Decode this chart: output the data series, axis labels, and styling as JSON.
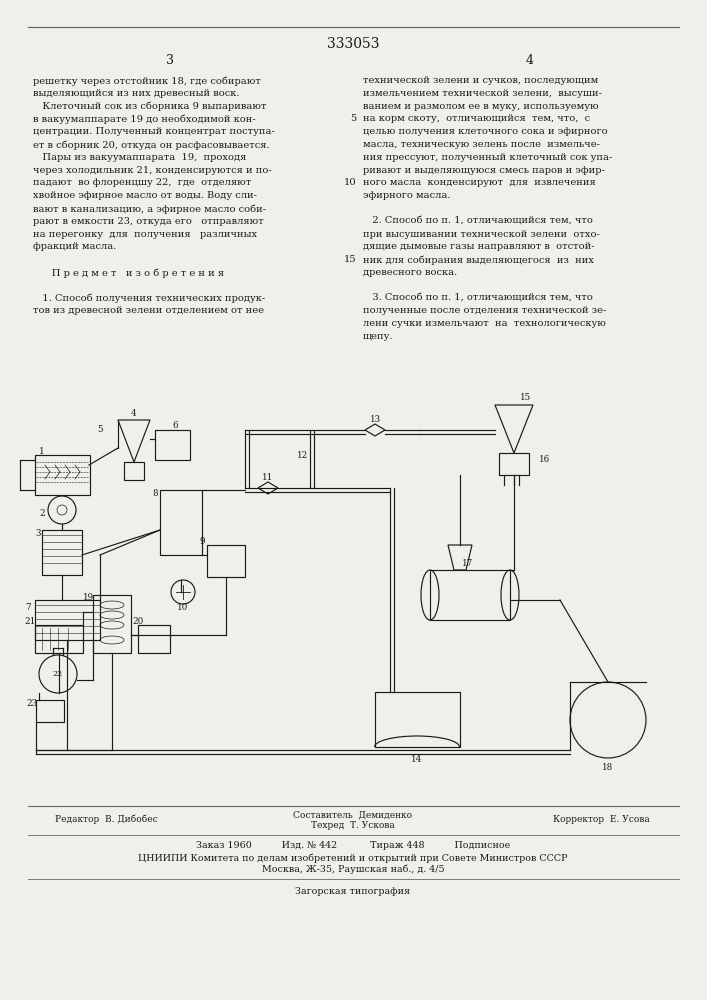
{
  "patent_number": "333053",
  "page_left": "3",
  "page_right": "4",
  "col_left_text": [
    "решетку через отстойник 18, где собирают",
    "выделяющийся из них древесный воск.",
    "   Клеточный сок из сборника 9 выпаривают",
    "в вакуумаппарате 19 до необходимой кон-",
    "центрации. Полученный концентрат поступа-",
    "ет в сборник 20, откуда он расфасовывается.",
    "   Пары из вакуумаппарата  19,  проходя",
    "через холодильник 21, конденсируются и по-",
    "падают  во флоренцшу 22,  где  отделяют",
    "хвойное эфирное масло от воды. Воду сли-",
    "вают в канализацию, а эфирное масло соби-",
    "рают в емкости 23, откуда его   отправляют",
    "на перегонку  для  получения   различных",
    "фракций масла.",
    "",
    "      П р е д м е т   и з о б р е т е н и я",
    "",
    "   1. Способ получения технических продук-",
    "тов из древесной зелени отделением от нее"
  ],
  "col_right_text": [
    "технической зелени и сучков, последующим",
    "измельчением технической зелени,  высуши-",
    "ванием и размолом ее в муку, используемую",
    "на корм скоту,  отличающийся  тем, что,  с",
    "целью получения клеточного сока и эфирного",
    "масла, техническую зелень после  измельче-",
    "ния прессуют, полученный клеточный сок упа-",
    "ривают и выделяющуюся смесь паров и эфир-",
    "ного масла  конденсируют  для  извлечения",
    "эфирного масла.",
    "",
    "   2. Способ по п. 1, отличающийся тем, что",
    "при высушивании технической зелени  отхо-",
    "дящие дымовые газы направляют в  отстой-",
    "ник для собирания выделяющегося  из  них",
    "древесного воска.",
    "",
    "   3. Способ по п. 1, отличающийся тем, что",
    "полученные после отделения технической зе-",
    "лени сучки измельчают  на  технологическую",
    "щепу."
  ],
  "line_numbers_right": [
    {
      "line_idx": 3,
      "number": "5"
    },
    {
      "line_idx": 8,
      "number": "10"
    },
    {
      "line_idx": 14,
      "number": "15"
    }
  ],
  "footer_line1_left": "Редактор  В. Дибобес",
  "footer_line1_center1": "Составитель  Демиденко",
  "footer_line1_center2": "Техред  Т. Ускова",
  "footer_line1_right": "Корректор  Е. Усова",
  "footer_line2": "Заказ 1960          Изд. № 442           Тираж 448          Подписное",
  "footer_line3": "ЦНИИПИ Комитета по делам изобретений и открытий при Совете Министров СССР",
  "footer_line4": "Москва, Ж-35, Раушская наб., д. 4/5",
  "footer_line5": "Загорская типография",
  "bg_color": "#f0f0eb",
  "text_color": "#1a1a1a",
  "border_color": "#666666"
}
